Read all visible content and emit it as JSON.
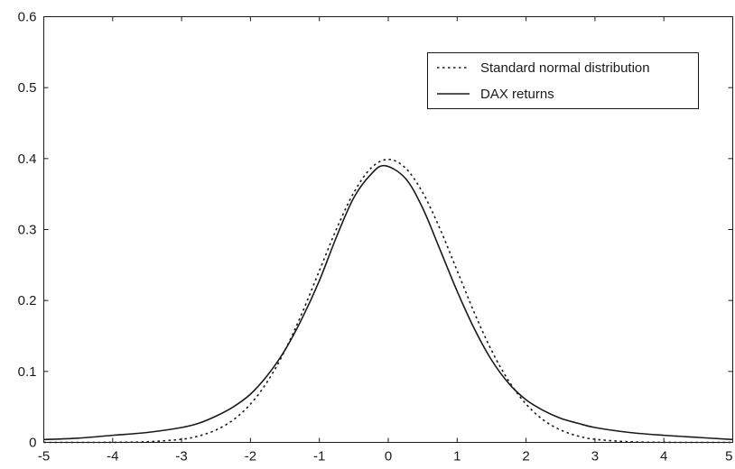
{
  "chart_data": {
    "type": "line",
    "title": "",
    "xlabel": "",
    "ylabel": "",
    "xlim": [
      -5,
      5
    ],
    "ylim": [
      0,
      0.6
    ],
    "x_ticks": [
      "-5",
      "-4",
      "-3",
      "-2",
      "-1",
      "0",
      "1",
      "2",
      "3",
      "4",
      "5"
    ],
    "y_ticks": [
      "0",
      "0.1",
      "0.2",
      "0.3",
      "0.4",
      "0.5",
      "0.6"
    ],
    "grid": false,
    "legend": "top-right",
    "series": [
      {
        "name": "Standard normal distribution",
        "style": "dotted",
        "color": "#1a1a1a",
        "x": [
          -5,
          -4.5,
          -4,
          -3.5,
          -3,
          -2.75,
          -2.5,
          -2.25,
          -2,
          -1.75,
          -1.5,
          -1.25,
          -1,
          -0.75,
          -0.5,
          -0.25,
          0,
          0.25,
          0.5,
          0.75,
          1,
          1.25,
          1.5,
          1.75,
          2,
          2.25,
          2.5,
          2.75,
          3,
          3.5,
          4,
          4.5,
          5
        ],
        "y": [
          0.0,
          0.0,
          0.0001,
          0.0009,
          0.0044,
          0.0091,
          0.0175,
          0.0317,
          0.054,
          0.0863,
          0.1295,
          0.1826,
          0.242,
          0.3011,
          0.3521,
          0.3867,
          0.3989,
          0.3867,
          0.3521,
          0.3011,
          0.242,
          0.1826,
          0.1295,
          0.0863,
          0.054,
          0.0317,
          0.0175,
          0.0091,
          0.0044,
          0.0009,
          0.0001,
          0.0,
          0.0
        ]
      },
      {
        "name": "DAX returns",
        "style": "solid",
        "color": "#1a1a1a",
        "x": [
          -5,
          -4.5,
          -4,
          -3.5,
          -3,
          -2.75,
          -2.5,
          -2.25,
          -2,
          -1.75,
          -1.5,
          -1.25,
          -1,
          -0.75,
          -0.5,
          -0.25,
          -0.05,
          0.25,
          0.5,
          0.75,
          1,
          1.25,
          1.5,
          1.75,
          2,
          2.25,
          2.5,
          2.75,
          3,
          3.5,
          4,
          4.5,
          5
        ],
        "y": [
          0.004,
          0.006,
          0.01,
          0.014,
          0.021,
          0.027,
          0.037,
          0.05,
          0.068,
          0.095,
          0.13,
          0.175,
          0.228,
          0.29,
          0.345,
          0.378,
          0.39,
          0.372,
          0.33,
          0.272,
          0.213,
          0.16,
          0.116,
          0.083,
          0.06,
          0.045,
          0.034,
          0.027,
          0.021,
          0.014,
          0.01,
          0.007,
          0.004
        ]
      }
    ]
  }
}
